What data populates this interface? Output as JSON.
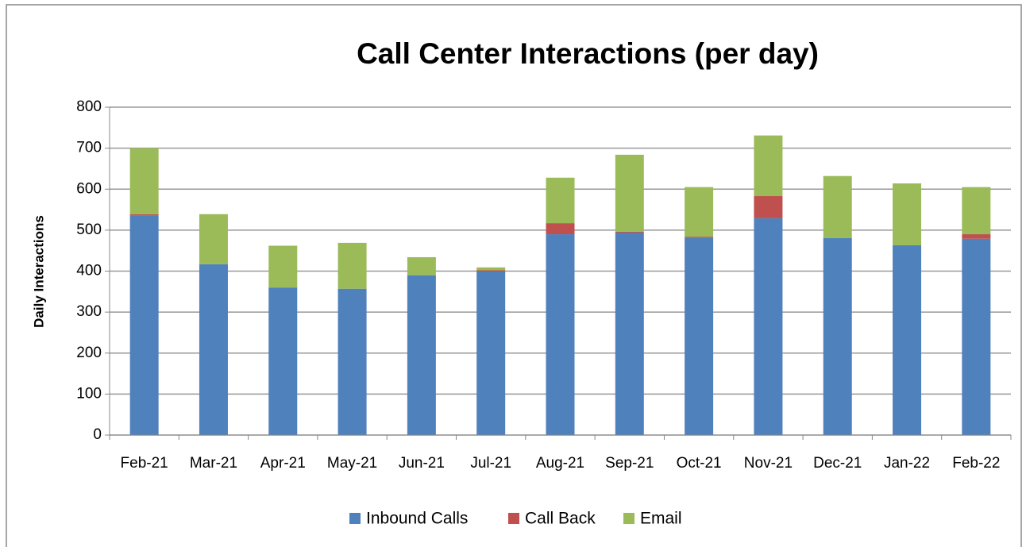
{
  "chart_data": {
    "type": "stacked_bar",
    "title": "Call Center Interactions (per day)",
    "y_label": "Daily Interactions",
    "categories": [
      "Feb-21",
      "Mar-21",
      "Apr-21",
      "May-21",
      "Jun-21",
      "Jul-21",
      "Aug-21",
      "Sep-21",
      "Oct-21",
      "Nov-21",
      "Dec-21",
      "Jan-22",
      "Feb-22"
    ],
    "series": [
      {
        "name": "Inbound Calls",
        "color": "#4f81bd",
        "values": [
          535,
          417,
          360,
          357,
          390,
          399,
          490,
          494,
          481,
          529,
          481,
          463,
          479
        ]
      },
      {
        "name": "Call Back",
        "color": "#c0504d",
        "values": [
          4,
          0,
          0,
          0,
          0,
          3,
          27,
          2,
          3,
          54,
          0,
          0,
          11
        ]
      },
      {
        "name": "Email",
        "color": "#9bbb59",
        "values": [
          161,
          122,
          102,
          112,
          44,
          7,
          111,
          188,
          121,
          148,
          151,
          151,
          115
        ]
      }
    ],
    "ylim": [
      0,
      800
    ],
    "yticks": [
      0,
      100,
      200,
      300,
      400,
      500,
      600,
      700,
      800
    ],
    "grid": true,
    "legend": "bottom"
  }
}
